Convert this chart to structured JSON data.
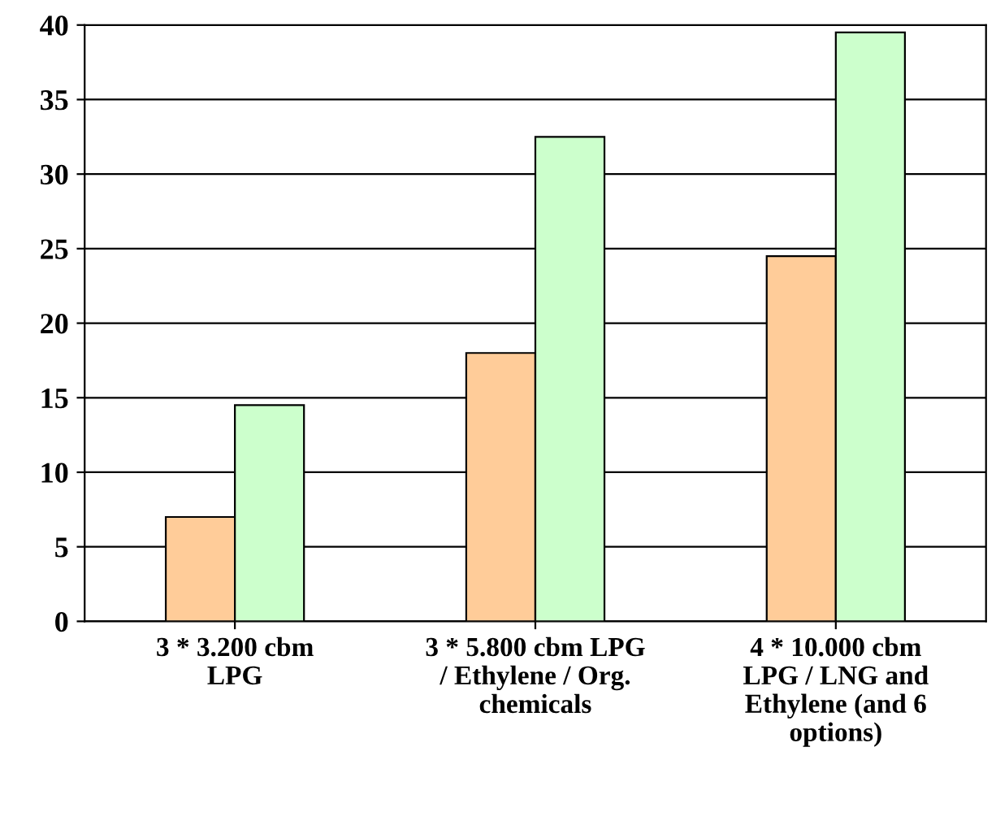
{
  "chart_data": {
    "type": "bar",
    "categories": [
      "3 * 3.200 cbm\nLPG",
      "3 * 5.800 cbm LPG\n/ Ethylene / Org.\nchemicals",
      "4 * 10.000 cbm\nLPG / LNG and\nEthylene (and 6\noptions)"
    ],
    "series": [
      {
        "color": "#ffcc99",
        "values": [
          7,
          18,
          24.5
        ]
      },
      {
        "color": "#ccffcc",
        "values": [
          14.5,
          32.5,
          39.5
        ]
      }
    ],
    "ylim": [
      0,
      40
    ],
    "yticks": [
      0,
      5,
      10,
      15,
      20,
      25,
      30,
      35,
      40
    ],
    "grid": "y",
    "legend": false
  }
}
